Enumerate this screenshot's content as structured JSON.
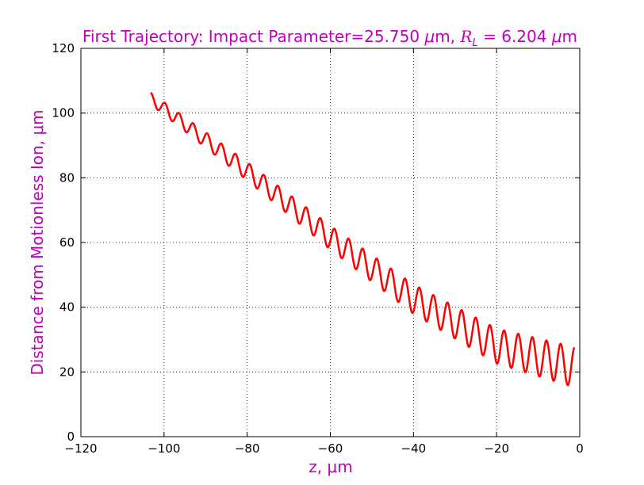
{
  "chart_data": {
    "type": "line",
    "title": "First Trajectory: Impact Parameter=25.750 μm, R_L = 6.204 μm",
    "title_parts": {
      "main": "First Trajectory: Impact Parameter=25.750 ",
      "mu1": "μ",
      "mid": "m, ",
      "rl_letter": "R",
      "rl_sub": "L",
      "eq": " = 6.204 ",
      "mu2": "μ",
      "end": "m"
    },
    "xlabel": "z, μm",
    "ylabel": "Distance from Motionless Ion, μm",
    "xlim": [
      -120,
      0
    ],
    "ylim": [
      0,
      120
    ],
    "xticks": [
      "−120",
      "−100",
      "−80",
      "−60",
      "−40",
      "−20",
      "0"
    ],
    "yticks": [
      "0",
      "20",
      "40",
      "60",
      "80",
      "100",
      "120"
    ],
    "grid": true,
    "colors": {
      "series": "#ff0000",
      "title": "#bf00bf",
      "grid": "#000000"
    },
    "series": [
      {
        "z_start": -103.2,
        "z_end": -1.3,
        "trend_points": [
          [
            -103.2,
            104.5
          ],
          [
            -80,
            82
          ],
          [
            -60,
            61.5
          ],
          [
            -40,
            42.5
          ],
          [
            -20,
            28
          ],
          [
            -1.3,
            21.5
          ]
        ],
        "oscillation_period": 3.4,
        "amplitude_start": 1.8,
        "amplitude_end": 6.2
      }
    ]
  }
}
